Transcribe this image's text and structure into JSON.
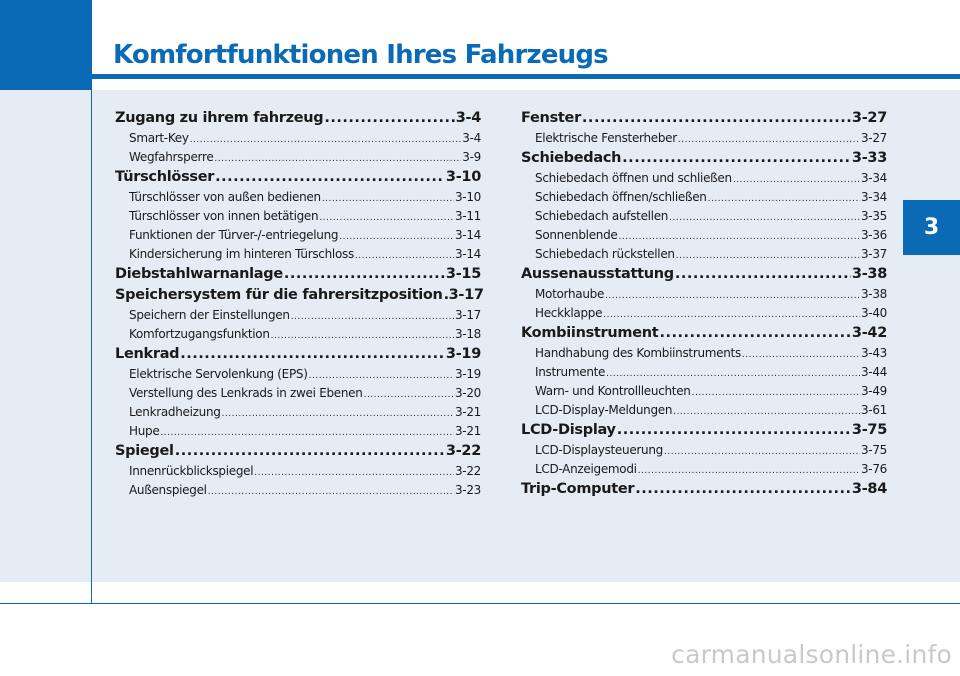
{
  "header": {
    "title": "Komfortfunktionen Ihres Fahrzeugs"
  },
  "chapter_tab": "3",
  "toc_left": [
    {
      "label": "Zugang zu ihrem fahrzeug",
      "page": "3-4",
      "sub": [
        {
          "label": "Smart-Key",
          "page": "3-4"
        },
        {
          "label": "Wegfahrsperre",
          "page": "3-9"
        }
      ]
    },
    {
      "label": "Türschlösser",
      "page": "3-10",
      "sub": [
        {
          "label": "Türschlösser von außen bedienen",
          "page": "3-10"
        },
        {
          "label": "Türschlösser von innen betätigen",
          "page": "3-11"
        },
        {
          "label": "Funktionen der Türver-/-entriegelung",
          "page": "3-14"
        },
        {
          "label": "Kindersicherung im hinteren Türschloss",
          "page": "3-14"
        }
      ]
    },
    {
      "label": "Diebstahlwarnanlage",
      "page": "3-15",
      "sub": []
    },
    {
      "label": "Speichersystem für die fahrersitzposition",
      "page": "3-17",
      "sub": [
        {
          "label": "Speichern der Einstellungen",
          "page": "3-17"
        },
        {
          "label": "Komfortzugangsfunktion",
          "page": "3-18"
        }
      ]
    },
    {
      "label": "Lenkrad",
      "page": "3-19",
      "sub": [
        {
          "label": "Elektrische Servolenkung (EPS)",
          "page": "3-19"
        },
        {
          "label": "Verstellung des Lenkrads in zwei Ebenen",
          "page": "3-20"
        },
        {
          "label": "Lenkradheizung",
          "page": "3-21"
        },
        {
          "label": "Hupe",
          "page": "3-21"
        }
      ]
    },
    {
      "label": "Spiegel",
      "page": "3-22",
      "sub": [
        {
          "label": "Innenrückblickspiegel",
          "page": "3-22"
        },
        {
          "label": "Außenspiegel",
          "page": "3-23"
        }
      ]
    }
  ],
  "toc_right": [
    {
      "label": "Fenster",
      "page": "3-27",
      "sub": [
        {
          "label": "Elektrische Fensterheber",
          "page": "3-27"
        }
      ]
    },
    {
      "label": "Schiebedach",
      "page": "3-33",
      "sub": [
        {
          "label": "Schiebedach öffnen und schließen",
          "page": "3-34"
        },
        {
          "label": "Schiebedach öffnen/schließen",
          "page": "3-34"
        },
        {
          "label": "Schiebedach aufstellen",
          "page": "3-35"
        },
        {
          "label": "Sonnenblende",
          "page": "3-36"
        },
        {
          "label": "Schiebedach rückstellen",
          "page": "3-37"
        }
      ]
    },
    {
      "label": "Aussenausstattung",
      "page": "3-38",
      "sub": [
        {
          "label": "Motorhaube",
          "page": "3-38"
        },
        {
          "label": "Heckklappe",
          "page": "3-40"
        }
      ]
    },
    {
      "label": "Kombiinstrument",
      "page": "3-42",
      "sub": [
        {
          "label": "Handhabung des Kombiinstruments",
          "page": "3-43"
        },
        {
          "label": "Instrumente",
          "page": "3-44"
        },
        {
          "label": "Warn- und Kontrollleuchten",
          "page": "3-49"
        },
        {
          "label": "LCD-Display-Meldungen",
          "page": "3-61"
        }
      ]
    },
    {
      "label": "LCD-Display",
      "page": "3-75",
      "sub": [
        {
          "label": "LCD-Displaysteuerung",
          "page": "3-75"
        },
        {
          "label": "LCD-Anzeigemodi",
          "page": "3-76"
        }
      ]
    },
    {
      "label": "Trip-Computer",
      "page": "3-84",
      "sub": []
    }
  ],
  "watermark": "carmanualsonline.info"
}
